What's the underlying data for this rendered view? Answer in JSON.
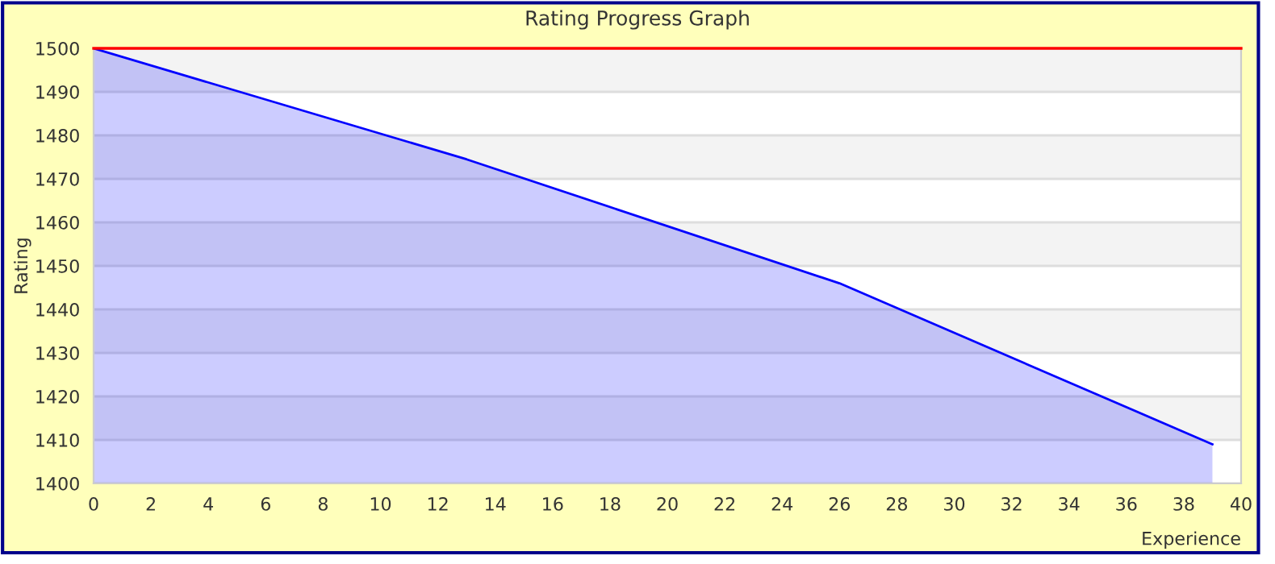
{
  "chart_data": {
    "type": "area",
    "title": "Rating Progress Graph",
    "xlabel": "Experience",
    "ylabel": "Rating",
    "x": [
      0,
      13,
      26,
      39
    ],
    "series": [
      {
        "color": "#0000ff",
        "values": [
          1500,
          1474.5,
          1446,
          1409
        ]
      }
    ],
    "xlim": [
      0,
      40
    ],
    "xticks": [
      0,
      2,
      4,
      6,
      8,
      10,
      12,
      14,
      16,
      18,
      20,
      22,
      24,
      26,
      28,
      30,
      32,
      34,
      36,
      38,
      40
    ],
    "ylim": [
      1400,
      1500
    ],
    "yticks": [
      1400,
      1410,
      1420,
      1430,
      1440,
      1450,
      1460,
      1470,
      1480,
      1490,
      1500
    ],
    "ref_lines": [
      {
        "axis": "y",
        "value": 1500,
        "color": "#ff0000"
      }
    ],
    "grid": "y",
    "legend": false
  }
}
